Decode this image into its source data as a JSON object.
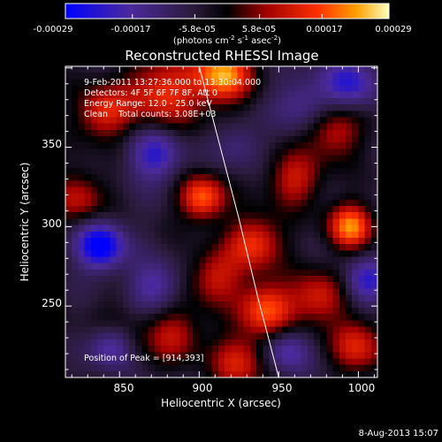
{
  "chart_data": {
    "type": "heatmap",
    "title": "Reconstructed RHESSI Image",
    "xlabel": "Heliocentric X (arcsec)",
    "ylabel": "Heliocentric Y (arcsec)",
    "xlim": [
      816,
      1012
    ],
    "ylim": [
      205,
      401
    ],
    "x_ticks": [
      850,
      900,
      950,
      1000
    ],
    "y_ticks": [
      250,
      300,
      350
    ],
    "grid": false,
    "colorbar": {
      "position": "top",
      "tick_labels": [
        "-0.00029",
        "-0.00017",
        "-5.8e-05",
        "5.8e-05",
        "0.00017",
        "0.00029"
      ],
      "tick_values": [
        -0.00029,
        -0.00017,
        -5.8e-05,
        5.8e-05,
        0.00017,
        0.00029
      ],
      "range": [
        -0.00029,
        0.00029
      ],
      "unit_label": "(photons cm",
      "unit_sup1": "-2",
      "unit_mid": " s",
      "unit_sup2": "-1",
      "unit_mid2": " asec",
      "unit_sup3": "-2",
      "unit_end": ")"
    },
    "annotations": {
      "time_range": "9-Feb-2011 13:27:36.000 to 13:30:04.000",
      "detectors": "Detectors: 4F 5F 6F 7F 8F, Att 0",
      "energy": "Energy Range: 12.0 - 25.0 keV",
      "clean": "Clean    Total counts: 3.08E+03",
      "peak": "Position of Peak = [914,393]"
    },
    "limb_curve": {
      "x": [
        900,
        912,
        925,
        937,
        950
      ],
      "y": [
        401,
        355,
        305,
        255,
        205
      ]
    },
    "image": {
      "nx": 49,
      "ny": 49,
      "sources": [
        {
          "x": 915,
          "y": 395,
          "a": 1.0,
          "s": 12
        },
        {
          "x": 902,
          "y": 318,
          "a": 0.85,
          "s": 10
        },
        {
          "x": 878,
          "y": 385,
          "a": 0.7,
          "s": 16
        },
        {
          "x": 840,
          "y": 372,
          "a": 0.65,
          "s": 12
        },
        {
          "x": 825,
          "y": 318,
          "a": 0.5,
          "s": 12
        },
        {
          "x": 985,
          "y": 360,
          "a": 0.55,
          "s": 12
        },
        {
          "x": 995,
          "y": 300,
          "a": 0.9,
          "s": 10
        },
        {
          "x": 960,
          "y": 330,
          "a": 0.55,
          "s": 12
        },
        {
          "x": 935,
          "y": 290,
          "a": 0.7,
          "s": 12
        },
        {
          "x": 942,
          "y": 248,
          "a": 0.8,
          "s": 12
        },
        {
          "x": 910,
          "y": 268,
          "a": 0.55,
          "s": 12
        },
        {
          "x": 975,
          "y": 255,
          "a": 0.6,
          "s": 12
        },
        {
          "x": 925,
          "y": 215,
          "a": 0.6,
          "s": 12
        },
        {
          "x": 885,
          "y": 232,
          "a": 0.5,
          "s": 12
        },
        {
          "x": 1000,
          "y": 225,
          "a": 0.6,
          "s": 12
        },
        {
          "x": 850,
          "y": 232,
          "a": 0.3,
          "s": 14
        },
        {
          "x": 838,
          "y": 288,
          "a": -0.9,
          "s": 11
        },
        {
          "x": 872,
          "y": 345,
          "a": -0.6,
          "s": 12
        },
        {
          "x": 845,
          "y": 225,
          "a": -0.7,
          "s": 10
        },
        {
          "x": 872,
          "y": 262,
          "a": -0.5,
          "s": 11
        },
        {
          "x": 995,
          "y": 390,
          "a": -0.6,
          "s": 12
        },
        {
          "x": 1005,
          "y": 265,
          "a": -0.6,
          "s": 10
        },
        {
          "x": 955,
          "y": 222,
          "a": -0.5,
          "s": 10
        },
        {
          "x": 965,
          "y": 378,
          "a": -0.4,
          "s": 12
        },
        {
          "x": 925,
          "y": 352,
          "a": -0.3,
          "s": 10
        }
      ]
    }
  },
  "footer": {
    "date": "8-Aug-2013 15:07"
  }
}
